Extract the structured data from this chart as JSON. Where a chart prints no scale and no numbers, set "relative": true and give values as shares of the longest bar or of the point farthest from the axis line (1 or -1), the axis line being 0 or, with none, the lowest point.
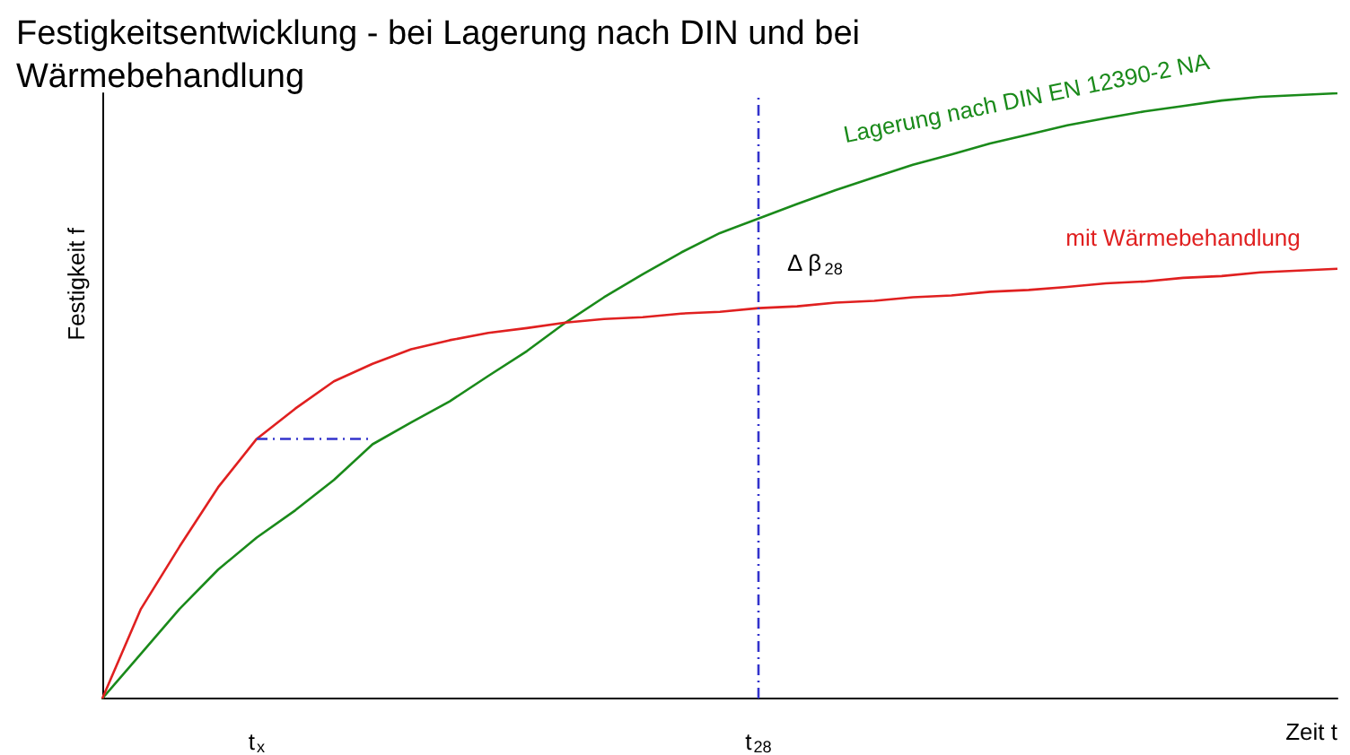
{
  "chart_data": {
    "type": "line",
    "title": "Festigkeitsentwicklung - bei Lagerung nach DIN und bei Wärmebehandlung",
    "xlabel": "Zeit t",
    "ylabel": "Festigkeit f",
    "relative": true,
    "legend": false,
    "grid": false,
    "marker": "none",
    "categories": [
      null,
      null,
      null,
      null,
      "t$_{x}$",
      null,
      null,
      null,
      null,
      null,
      null,
      null,
      null,
      null,
      null,
      null,
      null,
      "t$_{28}$",
      null,
      null,
      null,
      null,
      null,
      null,
      null,
      null,
      null,
      null,
      null,
      null,
      null,
      null,
      null
    ],
    "series": [
      {
        "name": "Lagerung nach DIN EN 12390-2 NA",
        "color": "#1a8a1a",
        "values": [
          0,
          0.074,
          0.148,
          0.213,
          0.266,
          0.311,
          0.361,
          0.42,
          0.456,
          0.491,
          0.533,
          0.574,
          0.621,
          0.663,
          0.701,
          0.737,
          0.769,
          0.793,
          0.817,
          0.84,
          0.861,
          0.882,
          0.899,
          0.917,
          0.932,
          0.947,
          0.959,
          0.97,
          0.979,
          0.988,
          0.994,
          0.997,
          1
        ]
      },
      {
        "name": "mit Wärmebehandlung",
        "color": "#e02020",
        "values": [
          0,
          0.148,
          0.251,
          0.349,
          0.429,
          0.479,
          0.524,
          0.553,
          0.577,
          0.592,
          0.604,
          0.612,
          0.621,
          0.627,
          0.63,
          0.636,
          0.639,
          0.645,
          0.648,
          0.654,
          0.657,
          0.663,
          0.666,
          0.672,
          0.675,
          0.68,
          0.686,
          0.689,
          0.695,
          0.698,
          0.704,
          0.707,
          0.71
        ]
      },
      {
        "color": "#3333cc",
        "line_style": "dashed",
        "values": [
          null,
          null,
          null,
          null,
          0.429,
          0.429,
          0.429,
          0.429,
          null,
          null,
          null,
          null,
          null,
          null,
          null,
          null,
          null,
          null,
          null,
          null,
          null,
          null,
          null,
          null,
          null,
          null,
          null,
          null,
          null,
          null,
          null,
          null,
          null
        ]
      }
    ],
    "ref_lines": [
      {
        "axis": "x",
        "value": "t$_{28}$",
        "color": "#3333cc",
        "line_style": "dashed"
      }
    ],
    "annotations": [
      {
        "text": "Δ β$_{28}$",
        "x": "t$_{28}$",
        "y": 0.72
      }
    ]
  }
}
